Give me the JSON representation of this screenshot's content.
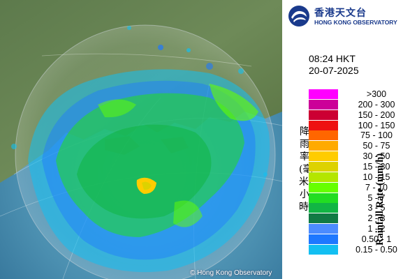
{
  "organization": {
    "name_zh": "香港天文台",
    "name_en": "HONG KONG OBSERVATORY"
  },
  "timestamp": {
    "time": "08:24 HKT",
    "date": "20-07-2025"
  },
  "legend": {
    "title_zh": "降雨率(毫米/小時)",
    "title_en": "Rainfall Rate (mm/h)",
    "items": [
      {
        "label": ">300",
        "color": "#ff00ff"
      },
      {
        "label": "200 - 300",
        "color": "#cc0099"
      },
      {
        "label": "150 - 200",
        "color": "#cc0033"
      },
      {
        "label": "100 - 150",
        "color": "#ee1111"
      },
      {
        "label": "75 - 100",
        "color": "#ff6600"
      },
      {
        "label": "50 - 75",
        "color": "#ffaa00"
      },
      {
        "label": "30 - 50",
        "color": "#ffcc00"
      },
      {
        "label": "15 - 30",
        "color": "#ddd200"
      },
      {
        "label": "10 - 15",
        "color": "#b4e600"
      },
      {
        "label": "7 - 10",
        "color": "#66ff00"
      },
      {
        "label": "5 - 7",
        "color": "#22dd22"
      },
      {
        "label": "3 - 5",
        "color": "#11b544"
      },
      {
        "label": "2 - 3",
        "color": "#117a44"
      },
      {
        "label": "1 - 2",
        "color": "#4c8cff"
      },
      {
        "label": "0.50 - 1",
        "color": "#1e78ff"
      },
      {
        "label": "0.15 - 0.50",
        "color": "#13bff2"
      }
    ]
  },
  "copyright": "© Hong Kong Observatory"
}
